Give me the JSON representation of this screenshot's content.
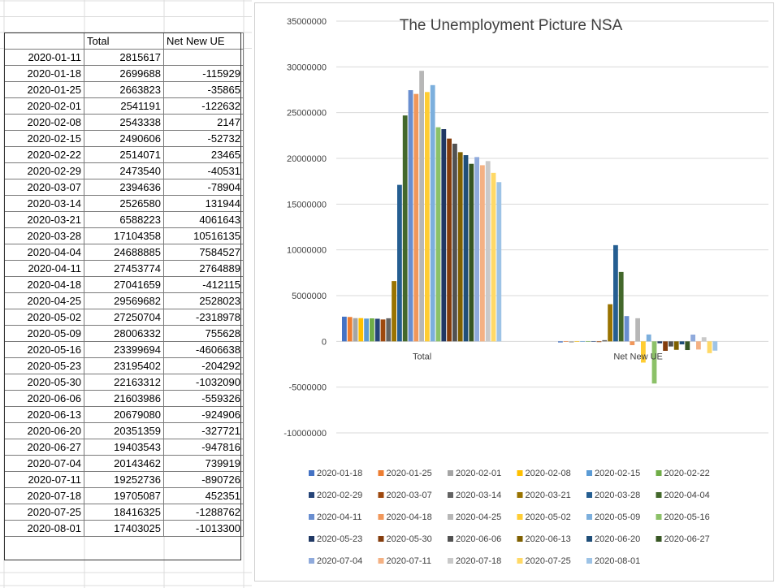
{
  "table": {
    "headers": [
      "",
      "Total",
      "Net New UE"
    ],
    "rows": [
      [
        "2020-01-11",
        "2815617",
        ""
      ],
      [
        "2020-01-18",
        "2699688",
        "-115929"
      ],
      [
        "2020-01-25",
        "2663823",
        "-35865"
      ],
      [
        "2020-02-01",
        "2541191",
        "-122632"
      ],
      [
        "2020-02-08",
        "2543338",
        "2147"
      ],
      [
        "2020-02-15",
        "2490606",
        "-52732"
      ],
      [
        "2020-02-22",
        "2514071",
        "23465"
      ],
      [
        "2020-02-29",
        "2473540",
        "-40531"
      ],
      [
        "2020-03-07",
        "2394636",
        "-78904"
      ],
      [
        "2020-03-14",
        "2526580",
        "131944"
      ],
      [
        "2020-03-21",
        "6588223",
        "4061643"
      ],
      [
        "2020-03-28",
        "17104358",
        "10516135"
      ],
      [
        "2020-04-04",
        "24688885",
        "7584527"
      ],
      [
        "2020-04-11",
        "27453774",
        "2764889"
      ],
      [
        "2020-04-18",
        "27041659",
        "-412115"
      ],
      [
        "2020-04-25",
        "29569682",
        "2528023"
      ],
      [
        "2020-05-02",
        "27250704",
        "-2318978"
      ],
      [
        "2020-05-09",
        "28006332",
        "755628"
      ],
      [
        "2020-05-16",
        "23399694",
        "-4606638"
      ],
      [
        "2020-05-23",
        "23195402",
        "-204292"
      ],
      [
        "2020-05-30",
        "22163312",
        "-1032090"
      ],
      [
        "2020-06-06",
        "21603986",
        "-559326"
      ],
      [
        "2020-06-13",
        "20679080",
        "-924906"
      ],
      [
        "2020-06-20",
        "20351359",
        "-327721"
      ],
      [
        "2020-06-27",
        "19403543",
        "-947816"
      ],
      [
        "2020-07-04",
        "20143462",
        "739919"
      ],
      [
        "2020-07-11",
        "19252736",
        "-890726"
      ],
      [
        "2020-07-18",
        "19705087",
        "452351"
      ],
      [
        "2020-07-25",
        "18416325",
        "-1288762"
      ],
      [
        "2020-08-01",
        "17403025",
        "-1013300"
      ]
    ]
  },
  "chart_data": {
    "type": "bar",
    "title": "The Unemployment Picture NSA",
    "categories": [
      "Total",
      "Net New UE"
    ],
    "ylim": [
      -10000000,
      35000000
    ],
    "yticks": [
      "35000000",
      "30000000",
      "25000000",
      "20000000",
      "15000000",
      "10000000",
      "5000000",
      "0",
      "-5000000",
      "-10000000"
    ],
    "grid": true,
    "legend_position": "bottom",
    "series": [
      {
        "name": "2020-01-18",
        "color": "#4472C4",
        "values": [
          2699688,
          -115929
        ]
      },
      {
        "name": "2020-01-25",
        "color": "#ED7D31",
        "values": [
          2663823,
          -35865
        ]
      },
      {
        "name": "2020-02-01",
        "color": "#A5A5A5",
        "values": [
          2541191,
          -122632
        ]
      },
      {
        "name": "2020-02-08",
        "color": "#FFC000",
        "values": [
          2543338,
          2147
        ]
      },
      {
        "name": "2020-02-15",
        "color": "#5B9BD5",
        "values": [
          2490606,
          -52732
        ]
      },
      {
        "name": "2020-02-22",
        "color": "#70AD47",
        "values": [
          2514071,
          23465
        ]
      },
      {
        "name": "2020-02-29",
        "color": "#264478",
        "values": [
          2473540,
          -40531
        ]
      },
      {
        "name": "2020-03-07",
        "color": "#9E480E",
        "values": [
          2394636,
          -78904
        ]
      },
      {
        "name": "2020-03-14",
        "color": "#636363",
        "values": [
          2526580,
          131944
        ]
      },
      {
        "name": "2020-03-21",
        "color": "#997300",
        "values": [
          6588223,
          4061643
        ]
      },
      {
        "name": "2020-03-28",
        "color": "#255E91",
        "values": [
          17104358,
          10516135
        ]
      },
      {
        "name": "2020-04-04",
        "color": "#43682B",
        "values": [
          24688885,
          7584527
        ]
      },
      {
        "name": "2020-04-11",
        "color": "#698ED0",
        "values": [
          27453774,
          2764889
        ]
      },
      {
        "name": "2020-04-18",
        "color": "#F1975A",
        "values": [
          27041659,
          -412115
        ]
      },
      {
        "name": "2020-04-25",
        "color": "#B7B7B7",
        "values": [
          29569682,
          2528023
        ]
      },
      {
        "name": "2020-05-02",
        "color": "#FFCD33",
        "values": [
          27250704,
          -2318978
        ]
      },
      {
        "name": "2020-05-09",
        "color": "#7CAFDD",
        "values": [
          28006332,
          755628
        ]
      },
      {
        "name": "2020-05-16",
        "color": "#8CC168",
        "values": [
          23399694,
          -4606638
        ]
      },
      {
        "name": "2020-05-23",
        "color": "#203864",
        "values": [
          23195402,
          -204292
        ]
      },
      {
        "name": "2020-05-30",
        "color": "#843C0C",
        "values": [
          22163312,
          -1032090
        ]
      },
      {
        "name": "2020-06-06",
        "color": "#525252",
        "values": [
          21603986,
          -559326
        ]
      },
      {
        "name": "2020-06-13",
        "color": "#7F6000",
        "values": [
          20679080,
          -924906
        ]
      },
      {
        "name": "2020-06-20",
        "color": "#1F4E79",
        "values": [
          20351359,
          -327721
        ]
      },
      {
        "name": "2020-06-27",
        "color": "#375623",
        "values": [
          19403543,
          -947816
        ]
      },
      {
        "name": "2020-07-04",
        "color": "#8FAADC",
        "values": [
          20143462,
          739919
        ]
      },
      {
        "name": "2020-07-11",
        "color": "#F4B183",
        "values": [
          19252736,
          -890726
        ]
      },
      {
        "name": "2020-07-18",
        "color": "#C9C9C9",
        "values": [
          19705087,
          452351
        ]
      },
      {
        "name": "2020-07-25",
        "color": "#FFD966",
        "values": [
          18416325,
          -1288762
        ]
      },
      {
        "name": "2020-08-01",
        "color": "#9DC3E6",
        "values": [
          17403025,
          -1013300
        ]
      }
    ]
  }
}
